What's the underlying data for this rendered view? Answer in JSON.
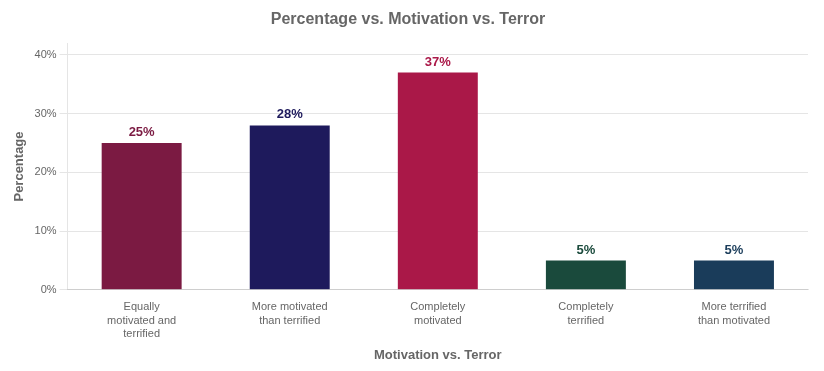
{
  "chart_data": {
    "type": "bar",
    "title": "Percentage vs. Motivation vs. Terror",
    "xlabel": "Motivation vs. Terror",
    "ylabel": "Percentage",
    "categories": [
      "Equally\nmotivated and\nterrified",
      "More motivated\nthan terrified",
      "Completely\nmotivated",
      "Completely\nterrified",
      "More terrified\nthan motivated"
    ],
    "values": [
      25,
      28,
      37,
      5,
      5
    ],
    "value_labels": [
      "25%",
      "28%",
      "37%",
      "5%",
      "5%"
    ],
    "data_labels": true,
    "colors": [
      "#7B1A42",
      "#1E1A5C",
      "#AA1848",
      "#1A4A3C",
      "#1A3C5A"
    ],
    "ylim": [
      0,
      42
    ],
    "yticks": [
      {
        "value": 0,
        "label": "0%"
      },
      {
        "value": 10,
        "label": "10%"
      },
      {
        "value": 20,
        "label": "20%"
      },
      {
        "value": 30,
        "label": "30%"
      },
      {
        "value": 40,
        "label": "40%"
      }
    ],
    "grid": true
  }
}
